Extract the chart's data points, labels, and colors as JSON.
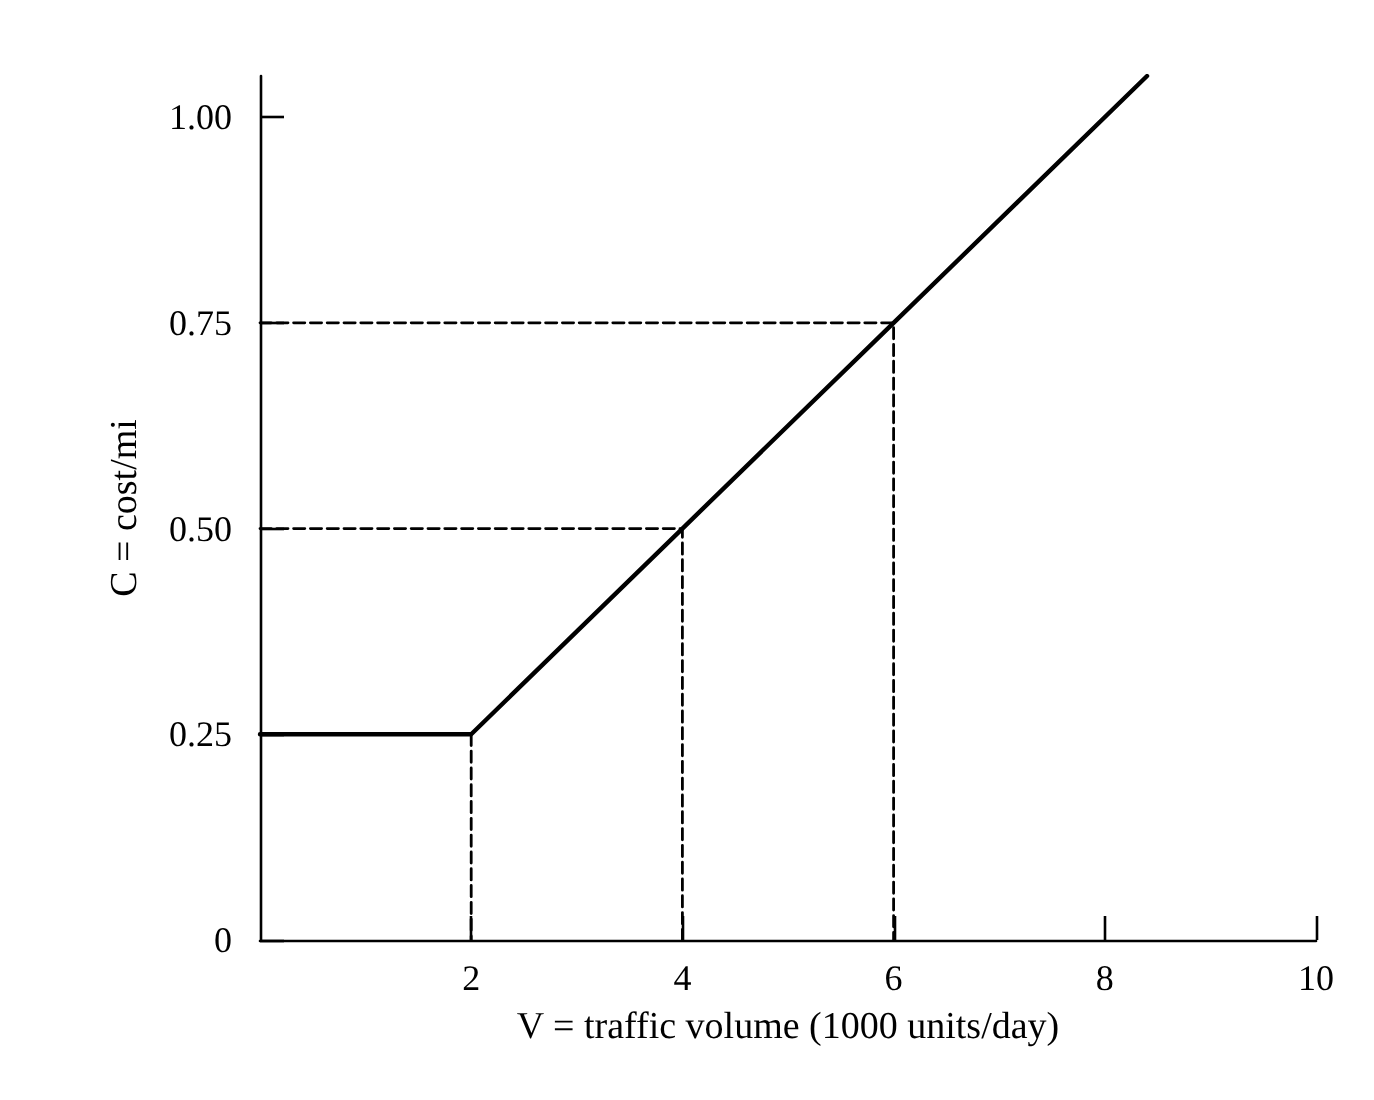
{
  "chart_data": {
    "type": "line",
    "xlabel": "V = traffic volume (1000 units/day)",
    "ylabel": "C = cost/mi",
    "xlim": [
      0,
      10
    ],
    "ylim": [
      0,
      1.05
    ],
    "xticks": [
      2,
      4,
      6,
      8,
      10
    ],
    "yticks": [
      0,
      {
        "value": 0.25,
        "label": "0.25"
      },
      {
        "value": 0.5,
        "label": "0.50"
      },
      {
        "value": 0.75,
        "label": "0.75"
      },
      {
        "value": 1,
        "label": "1.00"
      }
    ],
    "grid": false,
    "marker": "none",
    "line_style": "solid",
    "series": [
      {
        "color": "#000000",
        "x": [
          0,
          2,
          4,
          6,
          8.4
        ],
        "values": [
          0.25,
          0.25,
          0.5,
          0.75,
          1.05
        ]
      },
      {
        "color": "#000000",
        "line_style": "dashed",
        "x": [
          0,
          6,
          6
        ],
        "values": [
          0.75,
          0.75,
          0
        ]
      },
      {
        "color": "#000000",
        "line_style": "dashed",
        "x": [
          0,
          4,
          4
        ],
        "values": [
          0.5,
          0.5,
          0
        ]
      },
      {
        "color": "#000000",
        "line_style": "dashed",
        "x": [
          2,
          2
        ],
        "values": [
          0.25,
          0
        ]
      }
    ]
  }
}
